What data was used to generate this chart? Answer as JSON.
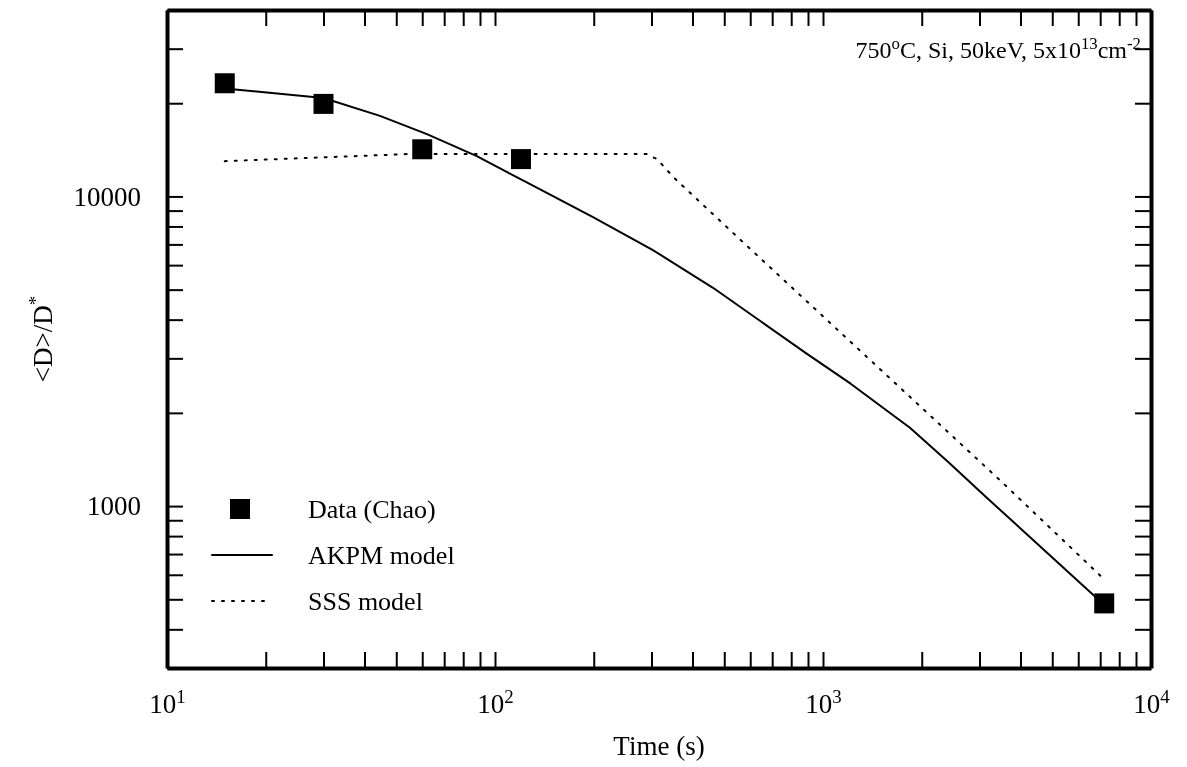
{
  "chart_data": {
    "type": "line",
    "xlabel": "Time (s)",
    "ylabel": "<D>/D$^{*}$",
    "log": "xy",
    "legend": "bottom left",
    "annotations": [
      "750$^{o}$C, Si, 50keV, 5x10$^{13}$cm$^{-2}$"
    ],
    "xlim": [
      10,
      10000
    ],
    "ylim": [
      300,
      40000
    ],
    "xticks": [
      {
        "value": 10,
        "label": "10$^{1}$"
      },
      {
        "value": 20,
        "label": null
      },
      {
        "value": 30,
        "label": null
      },
      {
        "value": 40,
        "label": null
      },
      {
        "value": 50,
        "label": null
      },
      {
        "value": 60,
        "label": null
      },
      {
        "value": 70,
        "label": null
      },
      {
        "value": 80,
        "label": null
      },
      {
        "value": 90,
        "label": null
      },
      {
        "value": 100,
        "label": "10$^{2}$"
      },
      {
        "value": 200,
        "label": null
      },
      {
        "value": 300,
        "label": null
      },
      {
        "value": 400,
        "label": null
      },
      {
        "value": 500,
        "label": null
      },
      {
        "value": 600,
        "label": null
      },
      {
        "value": 700,
        "label": null
      },
      {
        "value": 800,
        "label": null
      },
      {
        "value": 900,
        "label": null
      },
      {
        "value": 1000,
        "label": "10$^{3}$"
      },
      {
        "value": 2000,
        "label": null
      },
      {
        "value": 3000,
        "label": null
      },
      {
        "value": 4000,
        "label": null
      },
      {
        "value": 5000,
        "label": null
      },
      {
        "value": 6000,
        "label": null
      },
      {
        "value": 7000,
        "label": null
      },
      {
        "value": 8000,
        "label": null
      },
      {
        "value": 9000,
        "label": null
      },
      {
        "value": 10000,
        "label": "10$^{4}$"
      }
    ],
    "yticks": [
      {
        "value": 300,
        "label": null
      },
      {
        "value": 400,
        "label": null
      },
      {
        "value": 500,
        "label": null
      },
      {
        "value": 600,
        "label": null
      },
      {
        "value": 700,
        "label": null
      },
      {
        "value": 800,
        "label": null
      },
      {
        "value": 900,
        "label": null
      },
      1000,
      {
        "value": 2000,
        "label": null
      },
      {
        "value": 3000,
        "label": null
      },
      {
        "value": 4000,
        "label": null
      },
      {
        "value": 5000,
        "label": null
      },
      {
        "value": 6000,
        "label": null
      },
      {
        "value": 7000,
        "label": null
      },
      {
        "value": 8000,
        "label": null
      },
      {
        "value": 9000,
        "label": null
      },
      10000,
      {
        "value": 20000,
        "label": null
      },
      {
        "value": 30000,
        "label": null
      },
      {
        "value": 40000,
        "label": null
      }
    ],
    "series": [
      {
        "name": "Data (Chao)",
        "type": "scatter",
        "marker": "square",
        "color": "#000000",
        "x": [
          15,
          30,
          60,
          120,
          7200
        ],
        "values": [
          23200,
          19900,
          14200,
          13200,
          485
        ]
      },
      {
        "name": "AKPM model",
        "line_style": "solid",
        "color": "#000000",
        "x": [
          15,
          30,
          44.6,
          62,
          88,
          125,
          199,
          303,
          462,
          887,
          1217,
          1841,
          2404,
          3140,
          6840,
          7200
        ],
        "values": [
          22300,
          20800,
          18200,
          15900,
          13500,
          11100,
          8570,
          6710,
          5070,
          3120,
          2480,
          1790,
          1390,
          1070,
          504,
          485
        ]
      },
      {
        "name": "SSS model",
        "line_style": "dotted",
        "color": "#000000",
        "x": [
          15,
          54,
          290,
          312,
          351,
          574,
          1343,
          3470,
          7200
        ],
        "values": [
          13000,
          13700,
          13700,
          13200,
          11500,
          7070,
          3070,
          1210,
          580
        ]
      }
    ]
  }
}
